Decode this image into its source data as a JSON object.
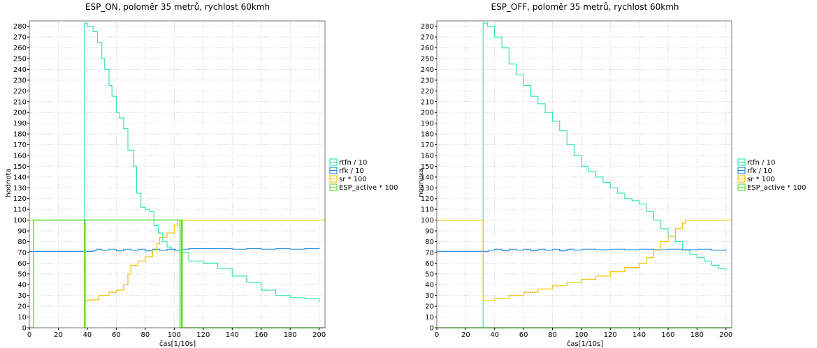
{
  "chart_data": [
    {
      "type": "line",
      "title": "ESP_ON, poloměr 35 metrů, rychlost 60kmh",
      "xlabel": "čas[1/10s]",
      "ylabel": "hodnota",
      "xlim": [
        0,
        204
      ],
      "ylim": [
        0,
        285
      ],
      "xticks": [
        0,
        20,
        40,
        60,
        80,
        100,
        120,
        140,
        160,
        180,
        200
      ],
      "yticks": [
        0,
        10,
        20,
        30,
        40,
        50,
        60,
        70,
        80,
        90,
        100,
        110,
        120,
        130,
        140,
        150,
        160,
        170,
        180,
        190,
        200,
        210,
        220,
        230,
        240,
        250,
        260,
        270,
        280
      ],
      "grid": true,
      "legend_position": "right",
      "series": [
        {
          "name": "rtfn / 10",
          "color": "#33e6b3",
          "points": [
            [
              38,
              0
            ],
            [
              38,
              283
            ],
            [
              40,
              280
            ],
            [
              44,
              275
            ],
            [
              47,
              265
            ],
            [
              50,
              250
            ],
            [
              52,
              240
            ],
            [
              55,
              225
            ],
            [
              57,
              215
            ],
            [
              60,
              200
            ],
            [
              62,
              195
            ],
            [
              65,
              185
            ],
            [
              68,
              165
            ],
            [
              72,
              150
            ],
            [
              74,
              125
            ],
            [
              77,
              112
            ],
            [
              80,
              110
            ],
            [
              83,
              108
            ],
            [
              86,
              95
            ],
            [
              89,
              88
            ],
            [
              92,
              80
            ],
            [
              95,
              75
            ],
            [
              98,
              73
            ],
            [
              101,
              72
            ],
            [
              104,
              70
            ],
            [
              110,
              62
            ],
            [
              120,
              60
            ],
            [
              130,
              55
            ],
            [
              140,
              48
            ],
            [
              150,
              42
            ],
            [
              160,
              35
            ],
            [
              170,
              30
            ],
            [
              180,
              28
            ],
            [
              190,
              27
            ],
            [
              200,
              24
            ]
          ]
        },
        {
          "name": "rfk / 10",
          "color": "#2b8fe0",
          "points": [
            [
              0,
              71
            ],
            [
              38,
              71
            ],
            [
              44,
              71.5
            ],
            [
              46,
              73
            ],
            [
              50,
              72
            ],
            [
              55,
              73
            ],
            [
              60,
              71.5
            ],
            [
              65,
              73
            ],
            [
              70,
              72
            ],
            [
              75,
              73
            ],
            [
              80,
              71.5
            ],
            [
              85,
              73
            ],
            [
              90,
              72
            ],
            [
              95,
              73
            ],
            [
              100,
              72
            ],
            [
              105,
              73
            ],
            [
              110,
              73.5
            ],
            [
              120,
              73.5
            ],
            [
              130,
              73.5
            ],
            [
              140,
              73
            ],
            [
              150,
              73.5
            ],
            [
              160,
              73
            ],
            [
              170,
              73.5
            ],
            [
              180,
              73
            ],
            [
              190,
              73.5
            ],
            [
              200,
              73
            ]
          ]
        },
        {
          "name": "sr * 100",
          "color": "#f2c200",
          "points": [
            [
              0,
              100
            ],
            [
              38,
              100
            ],
            [
              38,
              25
            ],
            [
              42,
              26
            ],
            [
              48,
              30
            ],
            [
              55,
              33
            ],
            [
              60,
              35
            ],
            [
              65,
              40
            ],
            [
              68,
              50
            ],
            [
              70,
              58
            ],
            [
              75,
              62
            ],
            [
              80,
              66
            ],
            [
              85,
              72
            ],
            [
              88,
              78
            ],
            [
              90,
              84
            ],
            [
              95,
              88
            ],
            [
              100,
              95
            ],
            [
              102,
              100
            ],
            [
              204,
              100
            ]
          ]
        },
        {
          "name": "ESP_active * 100",
          "color": "#66dd44",
          "points": [
            [
              0,
              0
            ],
            [
              3,
              0
            ],
            [
              3,
              100
            ],
            [
              38,
              100
            ],
            [
              38,
              0
            ],
            [
              38.5,
              0
            ],
            [
              38.5,
              100
            ],
            [
              104,
              100
            ],
            [
              104,
              0
            ],
            [
              105,
              0
            ],
            [
              105,
              100
            ],
            [
              105.5,
              100
            ],
            [
              105.5,
              0
            ],
            [
              204,
              0
            ]
          ]
        }
      ]
    },
    {
      "type": "line",
      "title": "ESP_OFF, poloměr 35 metrů, rychlost 60kmh",
      "xlabel": "čas[1/10s]",
      "ylabel": "hodnota",
      "xlim": [
        0,
        204
      ],
      "ylim": [
        0,
        285
      ],
      "xticks": [
        0,
        20,
        40,
        60,
        80,
        100,
        120,
        140,
        160,
        180,
        200
      ],
      "yticks": [
        0,
        10,
        20,
        30,
        40,
        50,
        60,
        70,
        80,
        90,
        100,
        110,
        120,
        130,
        140,
        150,
        160,
        170,
        180,
        190,
        200,
        210,
        220,
        230,
        240,
        250,
        260,
        270,
        280
      ],
      "grid": true,
      "legend_position": "right",
      "series": [
        {
          "name": "rtfn / 10",
          "color": "#33e6b3",
          "points": [
            [
              32,
              0
            ],
            [
              32,
              283
            ],
            [
              35,
              280
            ],
            [
              40,
              270
            ],
            [
              45,
              260
            ],
            [
              50,
              245
            ],
            [
              55,
              235
            ],
            [
              60,
              225
            ],
            [
              65,
              215
            ],
            [
              70,
              208
            ],
            [
              75,
              200
            ],
            [
              80,
              192
            ],
            [
              85,
              183
            ],
            [
              90,
              170
            ],
            [
              95,
              160
            ],
            [
              100,
              150
            ],
            [
              105,
              145
            ],
            [
              110,
              140
            ],
            [
              115,
              135
            ],
            [
              120,
              130
            ],
            [
              125,
              125
            ],
            [
              130,
              120
            ],
            [
              135,
              118
            ],
            [
              140,
              115
            ],
            [
              145,
              108
            ],
            [
              150,
              100
            ],
            [
              155,
              92
            ],
            [
              160,
              85
            ],
            [
              165,
              80
            ],
            [
              170,
              72
            ],
            [
              175,
              68
            ],
            [
              180,
              65
            ],
            [
              185,
              62
            ],
            [
              190,
              58
            ],
            [
              195,
              55
            ],
            [
              200,
              53
            ]
          ]
        },
        {
          "name": "rfk / 10",
          "color": "#2b8fe0",
          "points": [
            [
              0,
              71
            ],
            [
              32,
              71
            ],
            [
              36,
              72
            ],
            [
              40,
              73
            ],
            [
              45,
              71.5
            ],
            [
              50,
              73
            ],
            [
              55,
              72
            ],
            [
              60,
              73
            ],
            [
              65,
              71.5
            ],
            [
              70,
              73
            ],
            [
              75,
              72
            ],
            [
              80,
              73
            ],
            [
              85,
              71.5
            ],
            [
              90,
              73
            ],
            [
              95,
              72
            ],
            [
              100,
              73
            ],
            [
              110,
              72.5
            ],
            [
              120,
              73
            ],
            [
              130,
              72.5
            ],
            [
              140,
              73
            ],
            [
              150,
              72.5
            ],
            [
              160,
              73
            ],
            [
              170,
              72.5
            ],
            [
              180,
              73
            ],
            [
              190,
              72
            ],
            [
              200,
              73
            ]
          ]
        },
        {
          "name": "sr * 100",
          "color": "#f2c200",
          "points": [
            [
              0,
              100
            ],
            [
              32,
              100
            ],
            [
              32,
              25
            ],
            [
              40,
              27
            ],
            [
              50,
              30
            ],
            [
              60,
              33
            ],
            [
              70,
              36
            ],
            [
              80,
              39
            ],
            [
              90,
              42
            ],
            [
              100,
              45
            ],
            [
              110,
              48
            ],
            [
              120,
              52
            ],
            [
              130,
              56
            ],
            [
              140,
              60
            ],
            [
              145,
              65
            ],
            [
              150,
              72
            ],
            [
              155,
              80
            ],
            [
              160,
              85
            ],
            [
              165,
              92
            ],
            [
              170,
              97
            ],
            [
              172,
              100
            ],
            [
              204,
              100
            ]
          ]
        },
        {
          "name": "ESP_active * 100",
          "color": "#66dd44",
          "points": [
            [
              0,
              0
            ],
            [
              204,
              0
            ]
          ]
        }
      ]
    }
  ]
}
